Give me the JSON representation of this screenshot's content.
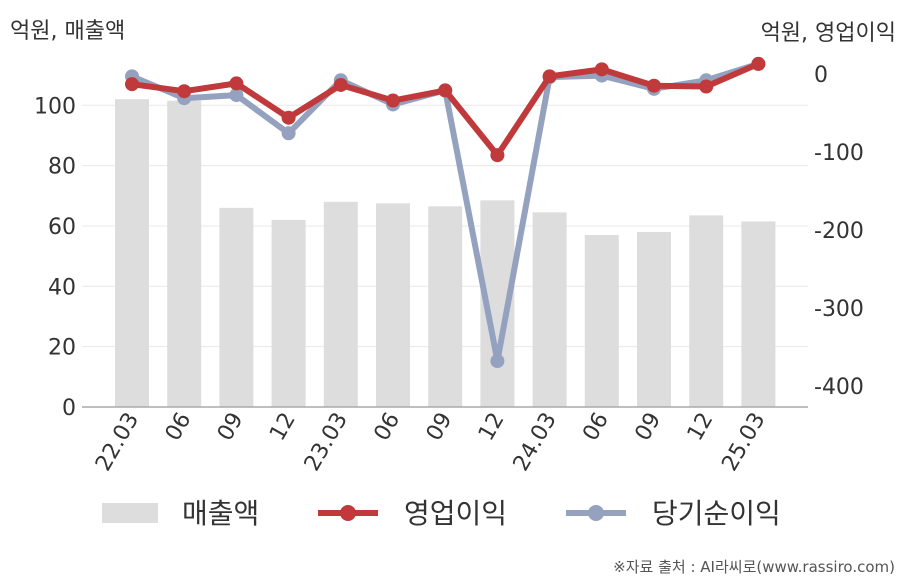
{
  "chart_data": {
    "type": "bar",
    "categories": [
      "22.03",
      "06",
      "09",
      "12",
      "23.03",
      "06",
      "09",
      "12",
      "24.03",
      "06",
      "09",
      "12",
      "25.03"
    ],
    "left_axis": {
      "unit_label": "억원, 매출액",
      "ylim": [
        0,
        115
      ],
      "ticks": [
        "0",
        "20",
        "40",
        "60",
        "80",
        "100"
      ]
    },
    "right_axis": {
      "unit_label": "억원, 영업이익",
      "ylim": [
        -427,
        18
      ],
      "ticks": [
        "0",
        "-100",
        "-200",
        "-300",
        "-400"
      ]
    },
    "series": [
      {
        "name": "매출액",
        "type": "bar",
        "axis": "left",
        "color": "#dddddd",
        "values": [
          102,
          101.5,
          66,
          62,
          68,
          67.5,
          66.5,
          68.5,
          64.5,
          57,
          58,
          63.5,
          61.5
        ]
      },
      {
        "name": "영업이익",
        "type": "line",
        "axis": "right",
        "color": "#c0393b",
        "values": [
          -13,
          -22,
          -12,
          -56,
          -14,
          -34,
          -21,
          -104,
          -3,
          6,
          -15,
          -16,
          13
        ]
      },
      {
        "name": "당기순이익",
        "type": "line",
        "axis": "right",
        "color": "#94a1bf",
        "values": [
          -3,
          -31,
          -27,
          -76,
          -8,
          -39,
          -21,
          -368,
          -4,
          -2,
          -19,
          -8,
          13
        ]
      }
    ],
    "grid": true,
    "legend": "bottom"
  },
  "source_text": "※자료 출처 : AI라씨로(www.rassiro.com)"
}
